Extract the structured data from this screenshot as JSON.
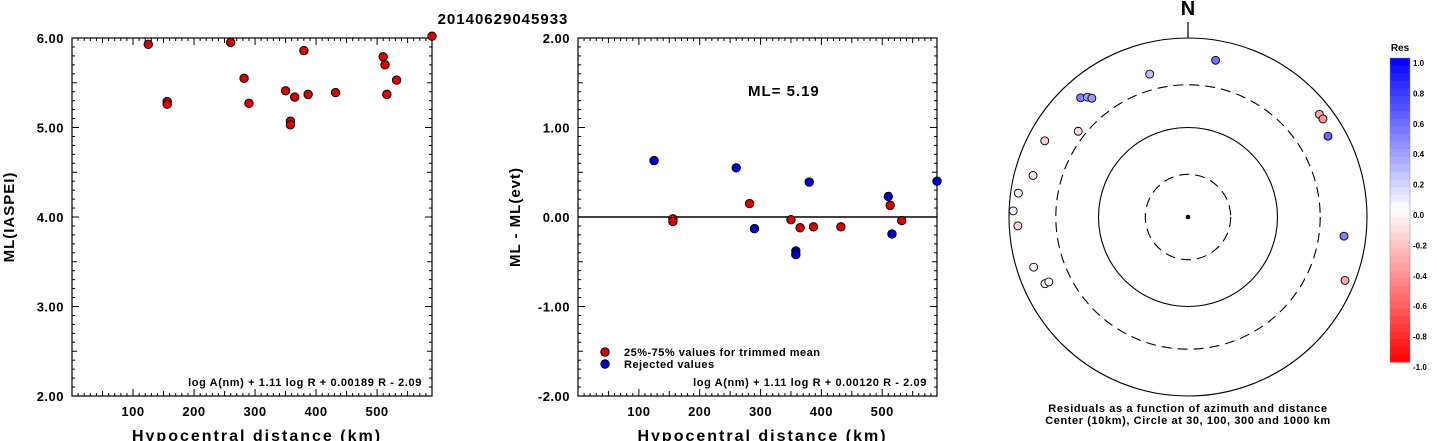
{
  "title": "20140629045933",
  "chart_data": [
    {
      "type": "scatter",
      "ylabel": "ML(IASPEI)",
      "xlabel": "Hypocentral distance (km)",
      "xlim": [
        0,
        590
      ],
      "ylim": [
        2.0,
        6.0
      ],
      "xticks": [
        "100",
        "200",
        "300",
        "400",
        "500"
      ],
      "yticks": [
        "2.00",
        "3.00",
        "4.00",
        "5.00",
        "6.00"
      ],
      "formula": "log A(nm) + 1.11 log R + 0.00189 R - 2.09",
      "series": [
        {
          "color": "#dd0000",
          "points": [
            [
              125,
              5.93
            ],
            [
              156,
              5.29
            ],
            [
              156,
              5.26
            ],
            [
              260,
              5.95
            ],
            [
              282,
              5.55
            ],
            [
              290,
              5.27
            ],
            [
              350,
              5.41
            ],
            [
              358,
              5.07
            ],
            [
              358,
              5.03
            ],
            [
              365,
              5.34
            ],
            [
              380,
              5.86
            ],
            [
              387,
              5.37
            ],
            [
              432,
              5.39
            ],
            [
              510,
              5.79
            ],
            [
              513,
              5.7
            ],
            [
              516,
              5.37
            ],
            [
              532,
              5.53
            ],
            [
              590,
              6.02
            ]
          ]
        }
      ]
    },
    {
      "type": "scatter",
      "ylabel": "ML - ML(evt)",
      "xlabel": "Hypocentral distance (km)",
      "xlim": [
        0,
        590
      ],
      "ylim": [
        -2.0,
        2.0
      ],
      "xticks": [
        "100",
        "200",
        "300",
        "400",
        "500"
      ],
      "yticks": [
        "-2.00",
        "-1.00",
        "0.00",
        "1.00",
        "2.00"
      ],
      "annotation": "ML= 5.19",
      "formula": "log A(nm) + 1.11 log R + 0.00120 R - 2.09",
      "zero_line": 0,
      "series": [
        {
          "name": "25%-75% values for trimmed mean",
          "color": "#dd0000",
          "points": [
            [
              156,
              -0.02
            ],
            [
              156,
              -0.05
            ],
            [
              282,
              0.15
            ],
            [
              350,
              -0.03
            ],
            [
              365,
              -0.12
            ],
            [
              387,
              -0.11
            ],
            [
              432,
              -0.11
            ],
            [
              513,
              0.13
            ],
            [
              532,
              -0.04
            ]
          ]
        },
        {
          "name": "Rejected values",
          "color": "#0000cc",
          "points": [
            [
              125,
              0.63
            ],
            [
              260,
              0.55
            ],
            [
              290,
              -0.13
            ],
            [
              358,
              -0.38
            ],
            [
              358,
              -0.42
            ],
            [
              380,
              0.39
            ],
            [
              510,
              0.23
            ],
            [
              516,
              -0.19
            ],
            [
              590,
              0.4
            ]
          ]
        }
      ]
    },
    {
      "type": "polar-scatter",
      "north_label": "N",
      "caption_line1": "Residuals as a function of azimuth and distance",
      "caption_line2": "Center (10km), Circle at 30, 100, 300 and 1000 km",
      "ring_distances_km": [
        30,
        100,
        300,
        1000
      ],
      "colorbar": {
        "title": "Res",
        "ticks": [
          "1.0",
          "0.8",
          "0.6",
          "0.4",
          "0.2",
          "0.0",
          "-0.2",
          "-0.4",
          "-0.6",
          "-0.8",
          "-1.0"
        ],
        "max_color": "#0000ff",
        "zero_color": "#ffffff",
        "min_color": "#ff0000"
      },
      "points": [
        {
          "azimuth": 10,
          "distance_km": 600,
          "residual": 0.55
        },
        {
          "azimuth": 345,
          "distance_km": 450,
          "residual": 0.25
        },
        {
          "azimuth": 318,
          "distance_km": 620,
          "residual": 0.5
        },
        {
          "azimuth": 320,
          "distance_km": 560,
          "residual": 0.38
        },
        {
          "azimuth": 321,
          "distance_km": 510,
          "residual": 0.4
        },
        {
          "azimuth": 308,
          "distance_km": 360,
          "residual": -0.15
        },
        {
          "azimuth": 298,
          "distance_km": 650,
          "residual": -0.2
        },
        {
          "azimuth": 285,
          "distance_km": 620,
          "residual": -0.1
        },
        {
          "azimuth": 278,
          "distance_km": 820,
          "residual": 0.05
        },
        {
          "azimuth": 272,
          "distance_km": 900,
          "residual": 0.05
        },
        {
          "azimuth": 267,
          "distance_km": 800,
          "residual": -0.15
        },
        {
          "azimuth": 252,
          "distance_km": 650,
          "residual": -0.05
        },
        {
          "azimuth": 245,
          "distance_km": 580,
          "residual": -0.05
        },
        {
          "azimuth": 245,
          "distance_km": 520,
          "residual": -0.02
        },
        {
          "azimuth": 52,
          "distance_km": 730,
          "residual": -0.35
        },
        {
          "azimuth": 54,
          "distance_km": 730,
          "residual": -0.4
        },
        {
          "azimuth": 60,
          "distance_km": 640,
          "residual": 0.6
        },
        {
          "azimuth": 97,
          "distance_km": 570,
          "residual": 0.5
        },
        {
          "azimuth": 112,
          "distance_km": 780,
          "residual": -0.35
        }
      ]
    }
  ]
}
